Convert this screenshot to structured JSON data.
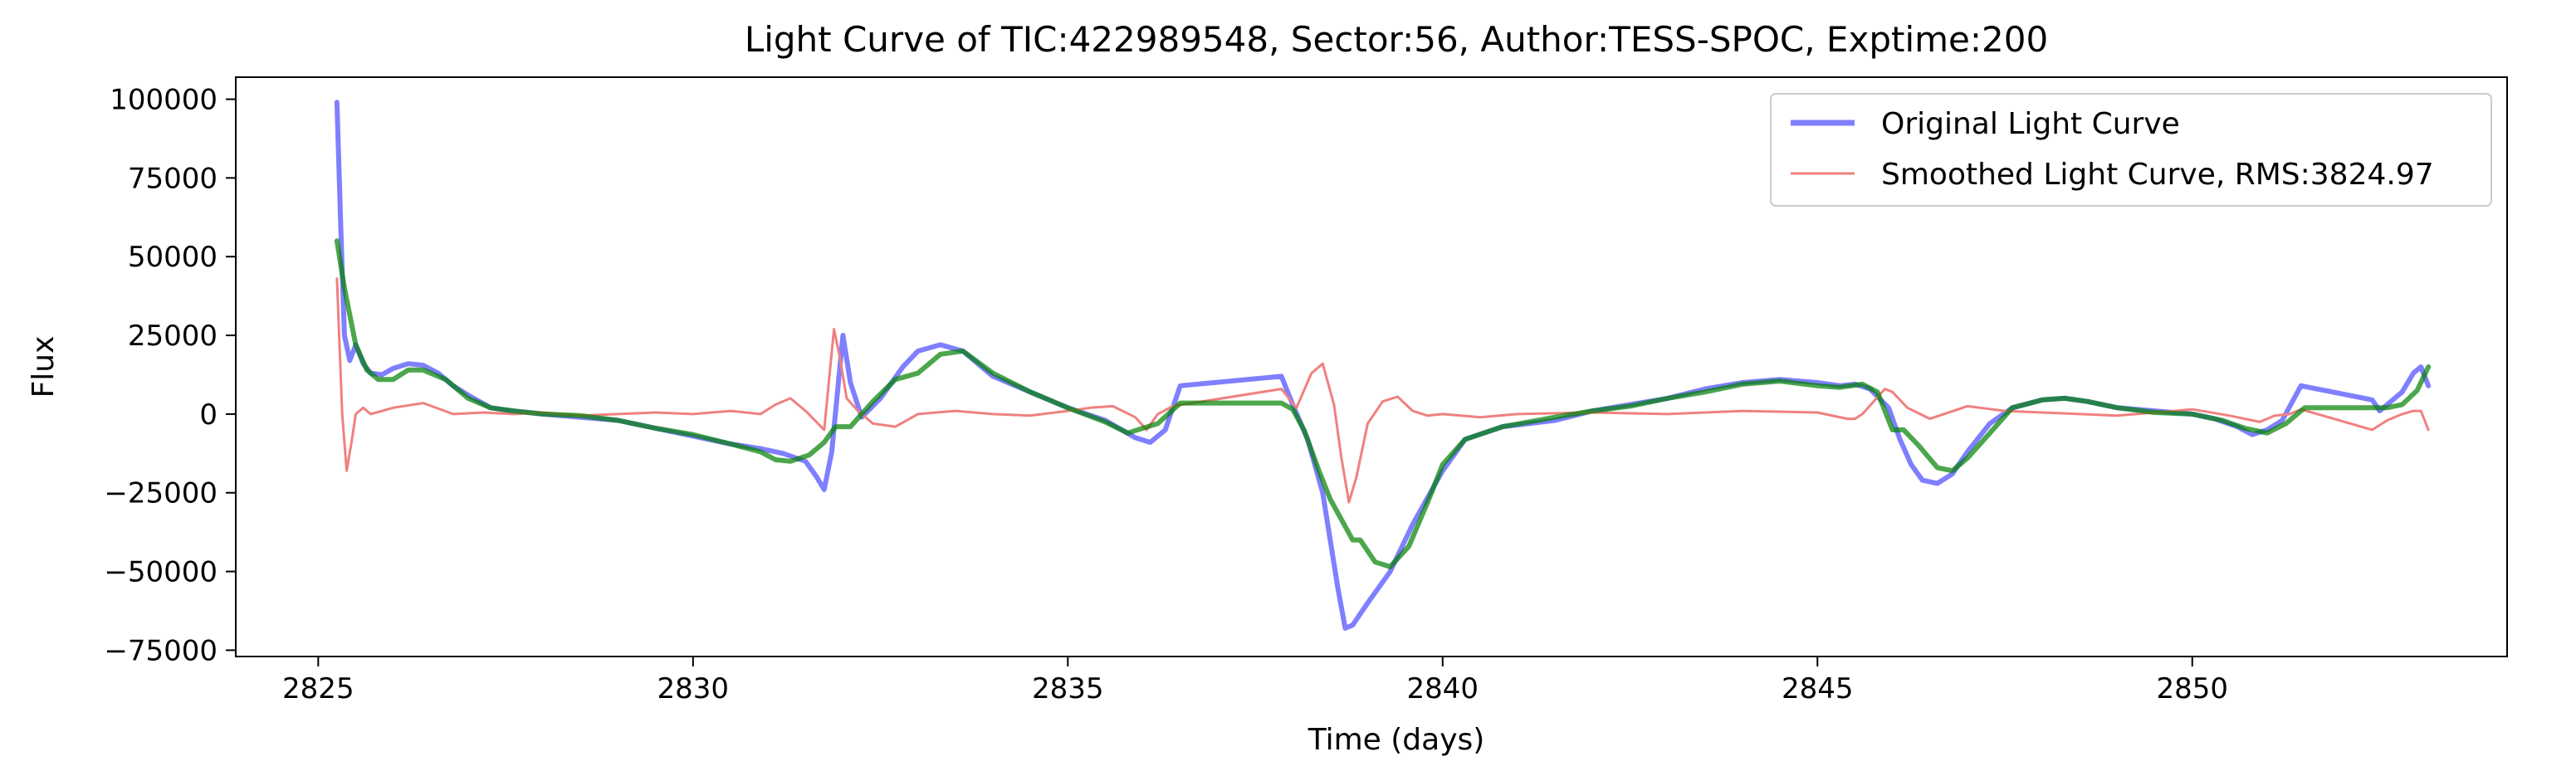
{
  "chart_data": {
    "type": "line",
    "title": "Light Curve of TIC:422989548, Sector:56, Author:TESS-SPOC, Exptime:200",
    "xlabel": "Time (days)",
    "ylabel": "Flux",
    "xlim": [
      2823.9,
      2854.2
    ],
    "ylim": [
      -77000,
      107000
    ],
    "xticks": [
      2825,
      2830,
      2835,
      2840,
      2845,
      2850
    ],
    "yticks": [
      -75000,
      -50000,
      -25000,
      0,
      25000,
      50000,
      75000,
      100000
    ],
    "grid": false,
    "legend_position": "top-right",
    "series": [
      {
        "name": "Original Light Curve",
        "color": "#0000ff",
        "x": [
          2825.25,
          2825.3,
          2825.35,
          2825.42,
          2825.5,
          2825.6,
          2825.7,
          2825.85,
          2826.0,
          2826.2,
          2826.4,
          2826.6,
          2826.8,
          2827.0,
          2827.3,
          2827.6,
          2828.0,
          2828.5,
          2829.0,
          2829.5,
          2830.0,
          2830.5,
          2830.9,
          2831.2,
          2831.5,
          2831.65,
          2831.75,
          2831.85,
          2832.0,
          2832.1,
          2832.25,
          2832.5,
          2832.8,
          2833.0,
          2833.3,
          2833.6,
          2834.0,
          2834.5,
          2835.0,
          2835.5,
          2835.9,
          2836.1,
          2836.3,
          2836.5,
          2837.85,
          2838.0,
          2838.2,
          2838.4,
          2838.6,
          2838.7,
          2838.8,
          2839.0,
          2839.3,
          2839.6,
          2840.0,
          2840.3,
          2840.8,
          2841.5,
          2842.0,
          2842.5,
          2843.0,
          2843.5,
          2844.0,
          2844.5,
          2845.0,
          2845.3,
          2845.5,
          2845.7,
          2845.95,
          2846.1,
          2846.25,
          2846.4,
          2846.6,
          2846.8,
          2847.0,
          2847.3,
          2847.6,
          2848.0,
          2848.3,
          2848.6,
          2849.0,
          2849.5,
          2850.0,
          2850.3,
          2850.6,
          2850.8,
          2851.0,
          2851.2,
          2851.45,
          2852.4,
          2852.5,
          2852.6,
          2852.8,
          2852.95,
          2853.05,
          2853.15
        ],
        "y": [
          99000,
          60000,
          25000,
          17000,
          22000,
          16000,
          13000,
          12500,
          14500,
          16000,
          15500,
          13000,
          9000,
          6000,
          2000,
          1000,
          0,
          -1000,
          -2000,
          -4500,
          -7000,
          -9500,
          -11000,
          -12500,
          -15000,
          -20000,
          -24000,
          -12000,
          25000,
          10000,
          -1000,
          5000,
          15000,
          20000,
          22000,
          20000,
          12000,
          7000,
          2000,
          -2000,
          -7500,
          -9000,
          -5000,
          9000,
          12000,
          3000,
          -8000,
          -25000,
          -55000,
          -68000,
          -67000,
          -60000,
          -50000,
          -35000,
          -18000,
          -8000,
          -4000,
          -2000,
          1000,
          3000,
          5000,
          8000,
          10000,
          11000,
          10000,
          9000,
          9500,
          8000,
          2000,
          -8000,
          -16000,
          -21000,
          -22000,
          -19000,
          -12000,
          -3000,
          2000,
          4500,
          5000,
          4000,
          2000,
          1000,
          0,
          -1500,
          -4000,
          -6500,
          -5000,
          -2000,
          9000,
          4500,
          1000,
          3000,
          7000,
          13000,
          15000,
          9000
        ]
      },
      {
        "name": "Smoothed Light Curve, RMS:3824.97",
        "color": "#f08080",
        "x": [
          2825.25,
          2825.32,
          2825.38,
          2825.45,
          2825.5,
          2825.6,
          2825.7,
          2826.0,
          2826.4,
          2826.8,
          2827.2,
          2827.6,
          2828.0,
          2828.5,
          2829.0,
          2829.5,
          2830.0,
          2830.5,
          2830.9,
          2831.1,
          2831.3,
          2831.5,
          2831.75,
          2831.88,
          2831.95,
          2832.05,
          2832.2,
          2832.4,
          2832.7,
          2833.0,
          2833.5,
          2834.0,
          2834.5,
          2835.0,
          2835.3,
          2835.6,
          2835.9,
          2836.05,
          2836.2,
          2836.4,
          2837.85,
          2838.05,
          2838.25,
          2838.4,
          2838.55,
          2838.65,
          2838.75,
          2838.85,
          2839.0,
          2839.2,
          2839.4,
          2839.6,
          2839.8,
          2840.0,
          2840.5,
          2841.0,
          2842.0,
          2843.0,
          2844.0,
          2845.0,
          2845.4,
          2845.5,
          2845.6,
          2845.75,
          2845.9,
          2846.0,
          2846.2,
          2846.5,
          2847.0,
          2847.5,
          2848.0,
          2848.5,
          2849.0,
          2849.5,
          2850.0,
          2850.5,
          2850.9,
          2851.1,
          2851.3,
          2851.45,
          2852.4,
          2852.6,
          2852.8,
          2852.95,
          2853.05,
          2853.15
        ],
        "y": [
          43000,
          0,
          -18000,
          -8000,
          0,
          2000,
          0,
          2000,
          3500,
          0,
          500,
          0,
          500,
          -500,
          0,
          500,
          0,
          1000,
          0,
          3000,
          5000,
          1000,
          -5000,
          27000,
          19000,
          5000,
          1000,
          -3000,
          -4000,
          0,
          1000,
          0,
          -500,
          1000,
          2000,
          2500,
          -1000,
          -5000,
          0,
          2500,
          8000,
          2000,
          13000,
          16000,
          3000,
          -14000,
          -28000,
          -20000,
          -3000,
          4000,
          5500,
          1000,
          -500,
          0,
          -1000,
          0,
          500,
          0,
          1000,
          500,
          -1500,
          -1500,
          0,
          4000,
          8000,
          7000,
          2000,
          -1500,
          2500,
          1000,
          500,
          0,
          -500,
          500,
          1500,
          -500,
          -2500,
          -500,
          0,
          1500,
          -5000,
          -2000,
          0,
          1000,
          1000,
          -5000
        ]
      },
      {
        "name": "",
        "color": "#008000",
        "x": [
          2825.25,
          2825.35,
          2825.5,
          2825.65,
          2825.8,
          2826.0,
          2826.2,
          2826.4,
          2826.7,
          2827.0,
          2827.3,
          2827.6,
          2828.0,
          2828.5,
          2829.0,
          2829.5,
          2830.0,
          2830.5,
          2830.9,
          2831.1,
          2831.3,
          2831.55,
          2831.75,
          2831.9,
          2832.1,
          2832.4,
          2832.7,
          2833.0,
          2833.3,
          2833.6,
          2834.0,
          2834.5,
          2835.0,
          2835.5,
          2835.8,
          2836.2,
          2836.5,
          2837.85,
          2838.0,
          2838.15,
          2838.35,
          2838.5,
          2838.8,
          2838.9,
          2839.1,
          2839.3,
          2839.55,
          2839.8,
          2840.0,
          2840.3,
          2840.8,
          2841.5,
          2842.0,
          2842.5,
          2843.0,
          2843.5,
          2844.0,
          2844.5,
          2845.0,
          2845.3,
          2845.6,
          2845.8,
          2846.0,
          2846.15,
          2846.35,
          2846.6,
          2846.8,
          2847.0,
          2847.3,
          2847.6,
          2848.0,
          2848.3,
          2848.6,
          2849.0,
          2849.5,
          2850.0,
          2850.4,
          2850.7,
          2851.0,
          2851.25,
          2851.5,
          2852.4,
          2852.6,
          2852.8,
          2853.0,
          2853.15
        ],
        "y": [
          55000,
          40000,
          22000,
          14000,
          11000,
          11000,
          14000,
          14000,
          11000,
          5000,
          2000,
          1000,
          0,
          -500,
          -2000,
          -4500,
          -6500,
          -9500,
          -12000,
          -14500,
          -15000,
          -13000,
          -9000,
          -4000,
          -4000,
          4000,
          11000,
          13000,
          19000,
          20000,
          13000,
          7000,
          2000,
          -2500,
          -6000,
          -3000,
          3500,
          3500,
          1500,
          -5000,
          -18000,
          -27000,
          -40000,
          -40000,
          -47000,
          -48500,
          -42000,
          -28000,
          -16000,
          -8000,
          -4000,
          -1000,
          1000,
          2500,
          5000,
          7000,
          9500,
          10500,
          9000,
          8500,
          9500,
          7000,
          -5000,
          -5000,
          -10000,
          -17000,
          -18000,
          -14000,
          -6000,
          2000,
          4500,
          5000,
          4000,
          2000,
          500,
          0,
          -2000,
          -4500,
          -6000,
          -3000,
          2000,
          2000,
          2000,
          3000,
          7500,
          15000
        ]
      }
    ],
    "legend_entries": [
      {
        "label": "Original Light Curve",
        "color": "#0000ff"
      },
      {
        "label": "Smoothed Light Curve, RMS:3824.97",
        "color": "#f08080"
      }
    ]
  }
}
